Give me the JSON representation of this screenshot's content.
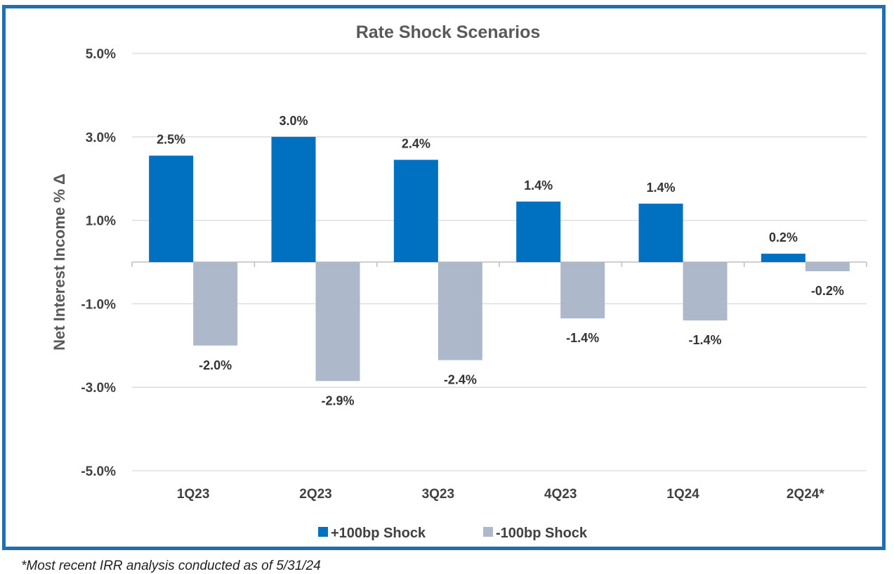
{
  "colors": {
    "frame": "#1f6fb2",
    "plus_series": "#0070c0",
    "minus_series": "#adb9ca",
    "gridline": "#d9d9d9",
    "text": "#404040",
    "label_text": "#333333"
  },
  "footnote": "*Most recent IRR analysis conducted as of 5/31/24",
  "chart_data": {
    "type": "bar",
    "title": "Rate Shock Scenarios",
    "xlabel": "",
    "ylabel": "Net Interest Income % Δ",
    "ylim": [
      -5.0,
      5.0
    ],
    "yticks": [
      "-5.0%",
      "-3.0%",
      "-1.0%",
      "1.0%",
      "3.0%",
      "5.0%"
    ],
    "ytick_values": [
      -5.0,
      -3.0,
      -1.0,
      1.0,
      3.0,
      5.0
    ],
    "grid": true,
    "legend_position": "bottom",
    "categories": [
      "1Q23",
      "2Q23",
      "3Q23",
      "4Q23",
      "1Q24",
      "2Q24*"
    ],
    "series": [
      {
        "name": "+100bp Shock",
        "values": [
          2.55,
          3.0,
          2.45,
          1.45,
          1.4,
          0.2
        ],
        "labels": [
          "2.5%",
          "3.0%",
          "2.4%",
          "1.4%",
          "1.4%",
          "0.2%"
        ]
      },
      {
        "name": "-100bp Shock",
        "values": [
          -2.0,
          -2.85,
          -2.35,
          -1.35,
          -1.4,
          -0.22
        ],
        "labels": [
          "-2.0%",
          "-2.9%",
          "-2.4%",
          "-1.4%",
          "-1.4%",
          "-0.2%"
        ]
      }
    ]
  }
}
